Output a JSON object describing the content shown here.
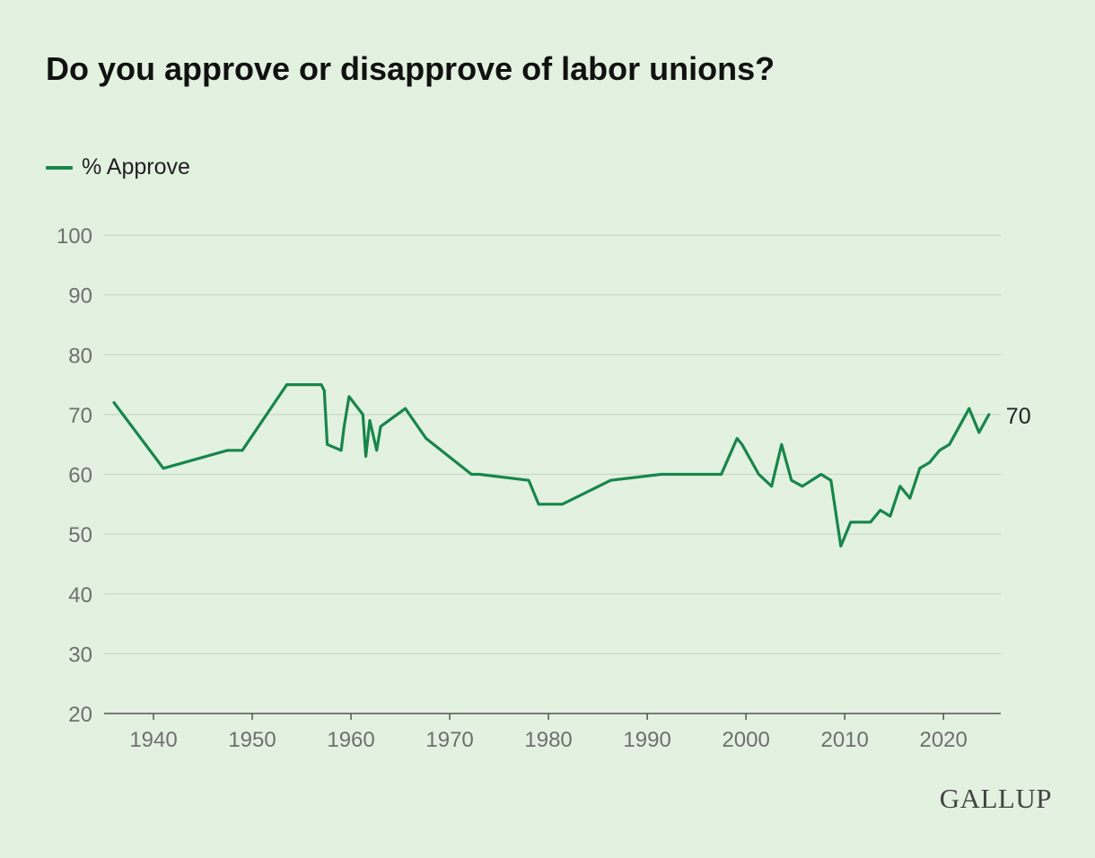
{
  "colors": {
    "background": "#e3f1e1",
    "series": "#17864a",
    "grid": "#c9d9c6",
    "axis": "#555555"
  },
  "logo": "GALLUP",
  "chart_data": {
    "type": "line",
    "title": "Do you approve or disapprove of labor unions?",
    "legend_position": "top-left",
    "grid": true,
    "xlim": [
      1935,
      2025.8
    ],
    "ylim": [
      20,
      100
    ],
    "xticks": [
      1940,
      1950,
      1960,
      1970,
      1980,
      1990,
      2000,
      2010,
      2020
    ],
    "yticks": [
      20,
      30,
      40,
      50,
      60,
      70,
      80,
      90,
      100
    ],
    "series": [
      {
        "name": "% Approve",
        "end_label": "70",
        "x": [
          1936,
          1941,
          1947.5,
          1949,
          1953.5,
          1957,
          1957.3,
          1957.6,
          1959,
          1959.3,
          1959.8,
          1961.2,
          1961.5,
          1961.9,
          1962.6,
          1963,
          1965.5,
          1967.6,
          1972.2,
          1973,
          1978,
          1979,
          1981.4,
          1986.3,
          1991.4,
          1997.5,
          1999.1,
          1999.6,
          2001.3,
          2002.6,
          2003.6,
          2004.6,
          2005.7,
          2007.6,
          2008.6,
          2009.6,
          2010.6,
          2011.6,
          2012.6,
          2013.6,
          2014.6,
          2015.6,
          2016.6,
          2017.6,
          2018.6,
          2019.6,
          2020.6,
          2022.6,
          2023.6,
          2024.6
        ],
        "y": [
          72,
          61,
          64,
          64,
          75,
          75,
          74,
          65,
          64,
          68,
          73,
          70,
          63,
          69,
          64,
          68,
          71,
          66,
          60,
          60,
          59,
          55,
          55,
          59,
          60,
          60,
          66,
          65,
          60,
          58,
          65,
          59,
          58,
          60,
          59,
          48,
          52,
          52,
          52,
          54,
          53,
          58,
          56,
          61,
          62,
          64,
          65,
          71,
          67,
          70
        ]
      }
    ]
  }
}
